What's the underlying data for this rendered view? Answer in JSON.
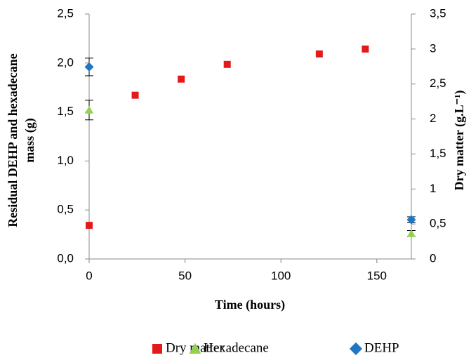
{
  "chart_data": {
    "type": "scatter",
    "xlabel": "Time (hours)",
    "ylabel_lines": [
      "Residual DEHP and hexadecane",
      "mass (g)"
    ],
    "y2label": "Dry matter (g.L⁻¹)",
    "xlim": [
      0,
      168
    ],
    "xticks": [
      0,
      50,
      100,
      150
    ],
    "ylim": [
      0,
      2.5
    ],
    "yticks": [
      {
        "value": 0,
        "label": "0,0"
      },
      {
        "value": 0.5,
        "label": "0,5"
      },
      {
        "value": 1,
        "label": "1,0"
      },
      {
        "value": 1.5,
        "label": "1,5"
      },
      {
        "value": 2,
        "label": "2,0"
      },
      {
        "value": 2.5,
        "label": "2,5"
      }
    ],
    "y2lim": [
      0,
      3.5
    ],
    "y2ticks": [
      0,
      {
        "value": 0.5,
        "label": "0,5"
      },
      1,
      {
        "value": 1.5,
        "label": "1,5"
      },
      2,
      {
        "value": 2.5,
        "label": "2,5"
      },
      3,
      {
        "value": 3.5,
        "label": "3,5"
      }
    ],
    "series": [
      {
        "name": "Dry matter",
        "color": "#e31a1c",
        "marker": "square",
        "axis": "y2",
        "x": [
          0,
          24,
          48,
          72,
          120,
          144
        ],
        "values": [
          0.48,
          2.34,
          2.57,
          2.78,
          2.93,
          3.0
        ]
      },
      {
        "name": "Hexadecane",
        "color": "#92d050",
        "marker": "triangle",
        "x": [
          0,
          168
        ],
        "values": [
          1.52,
          0.26
        ],
        "errors": [
          0.1,
          0.03
        ]
      },
      {
        "name": "DEHP",
        "color": "#1f77c4",
        "marker": "diamond",
        "x": [
          0,
          168
        ],
        "values": [
          1.96,
          0.4
        ],
        "errors": [
          0.09,
          0.03
        ]
      }
    ]
  }
}
